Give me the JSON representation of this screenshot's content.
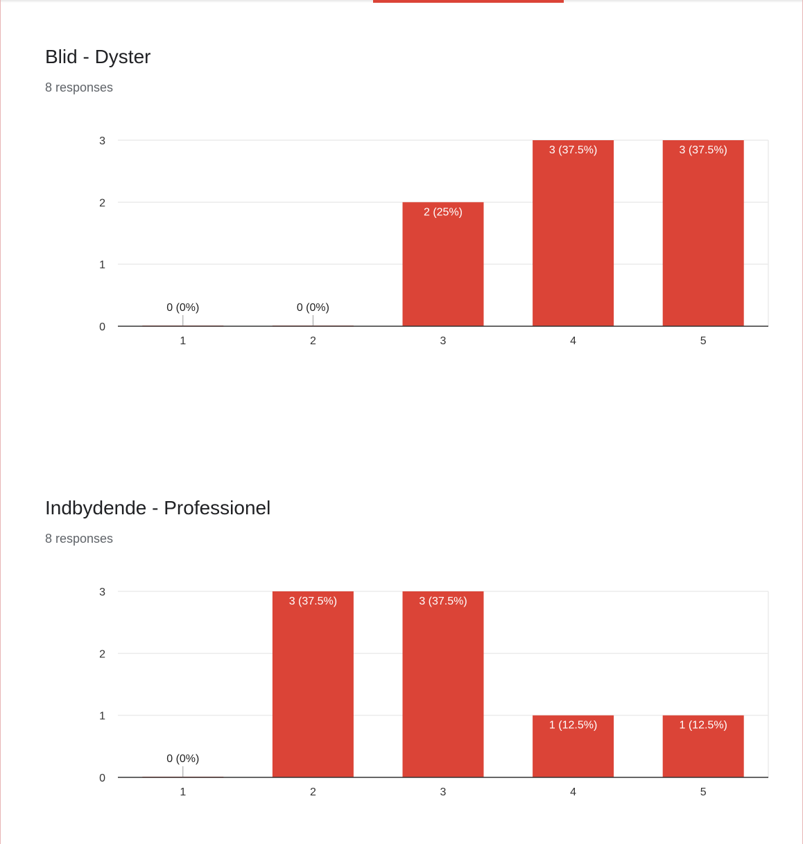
{
  "colors": {
    "bar": "#db4437",
    "accent": "#db4437",
    "grid": "#ebebeb",
    "axis": "#333333",
    "label_inside": "#ffffff",
    "label_outside": "#222222"
  },
  "questions": [
    {
      "title": "Blid - Dyster",
      "responses": "8 responses"
    },
    {
      "title": "Indbydende - Professionel",
      "responses": "8 responses"
    }
  ],
  "chart_data": [
    {
      "type": "bar",
      "title": "Blid - Dyster",
      "categories": [
        "1",
        "2",
        "3",
        "4",
        "5"
      ],
      "values": [
        0,
        0,
        2,
        3,
        3
      ],
      "data_labels": [
        "0 (0%)",
        "0 (0%)",
        "2 (25%)",
        "3 (37.5%)",
        "3 (37.5%)"
      ],
      "yticks": [
        "0",
        "1",
        "2",
        "3"
      ],
      "ylim": [
        0,
        3
      ],
      "grid": true,
      "xlabel": "",
      "ylabel": ""
    },
    {
      "type": "bar",
      "title": "Indbydende - Professionel",
      "categories": [
        "1",
        "2",
        "3",
        "4",
        "5"
      ],
      "values": [
        0,
        3,
        3,
        1,
        1
      ],
      "data_labels": [
        "0 (0%)",
        "3 (37.5%)",
        "3 (37.5%)",
        "1 (12.5%)",
        "1 (12.5%)"
      ],
      "yticks": [
        "0",
        "1",
        "2",
        "3"
      ],
      "ylim": [
        0,
        3
      ],
      "grid": true,
      "xlabel": "",
      "ylabel": ""
    }
  ]
}
